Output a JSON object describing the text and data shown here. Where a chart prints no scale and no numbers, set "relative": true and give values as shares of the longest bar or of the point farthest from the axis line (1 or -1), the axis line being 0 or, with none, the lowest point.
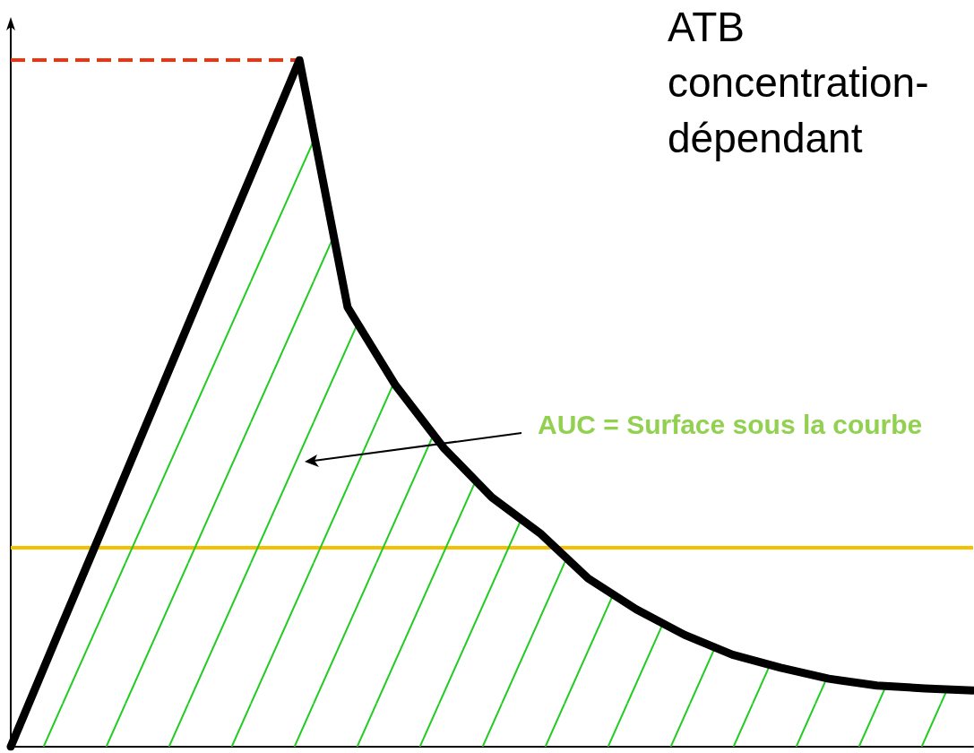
{
  "chart_data": {
    "type": "area",
    "title": "ATB concentration-dépendant",
    "relative": true,
    "categories": [
      null,
      null,
      null,
      null,
      null,
      null,
      null,
      null,
      null,
      null,
      null,
      null,
      null,
      null,
      null,
      null,
      null,
      null,
      null,
      null,
      null
    ],
    "series": [
      {
        "color": "#000000",
        "values": [
          0,
          0.167,
          0.333,
          0.5,
          0.667,
          0.833,
          1,
          0.64,
          0.526,
          0.435,
          0.363,
          0.311,
          0.245,
          0.2,
          0.163,
          0.134,
          0.115,
          0.099,
          0.089,
          0.085,
          0.082
        ]
      }
    ],
    "ref_lines": [
      {
        "axis": "y",
        "value": 1,
        "color": "#ee3311",
        "line_style": "dashed"
      },
      {
        "axis": "y",
        "value": 0.291,
        "color": "#f5c000",
        "line_style": "solid"
      }
    ],
    "annotations": [
      "AUC = Surface sous la courbe"
    ],
    "grid": false
  }
}
